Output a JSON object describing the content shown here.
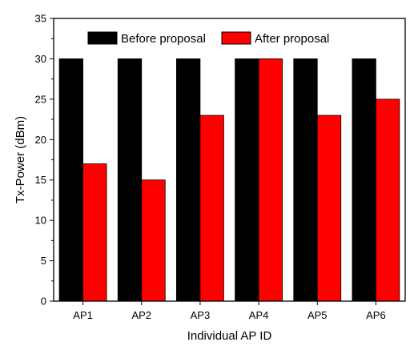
{
  "chart_data": {
    "type": "bar",
    "title": "",
    "xlabel": "Individual AP ID",
    "ylabel": "Tx-Power (dBm)",
    "categories": [
      "AP1",
      "AP2",
      "AP3",
      "AP4",
      "AP5",
      "AP6"
    ],
    "series": [
      {
        "name": "Before proposal",
        "color": "#000000",
        "values": [
          30,
          30,
          30,
          30,
          30,
          30
        ]
      },
      {
        "name": "After proposal",
        "color": "#ff0000",
        "values": [
          17,
          15,
          23,
          30,
          23,
          25
        ]
      }
    ],
    "ylim": [
      0,
      35
    ],
    "yticks": [
      "0",
      "5",
      "10",
      "15",
      "20",
      "25",
      "30",
      "35"
    ],
    "grid": false,
    "legend_position": "top"
  }
}
